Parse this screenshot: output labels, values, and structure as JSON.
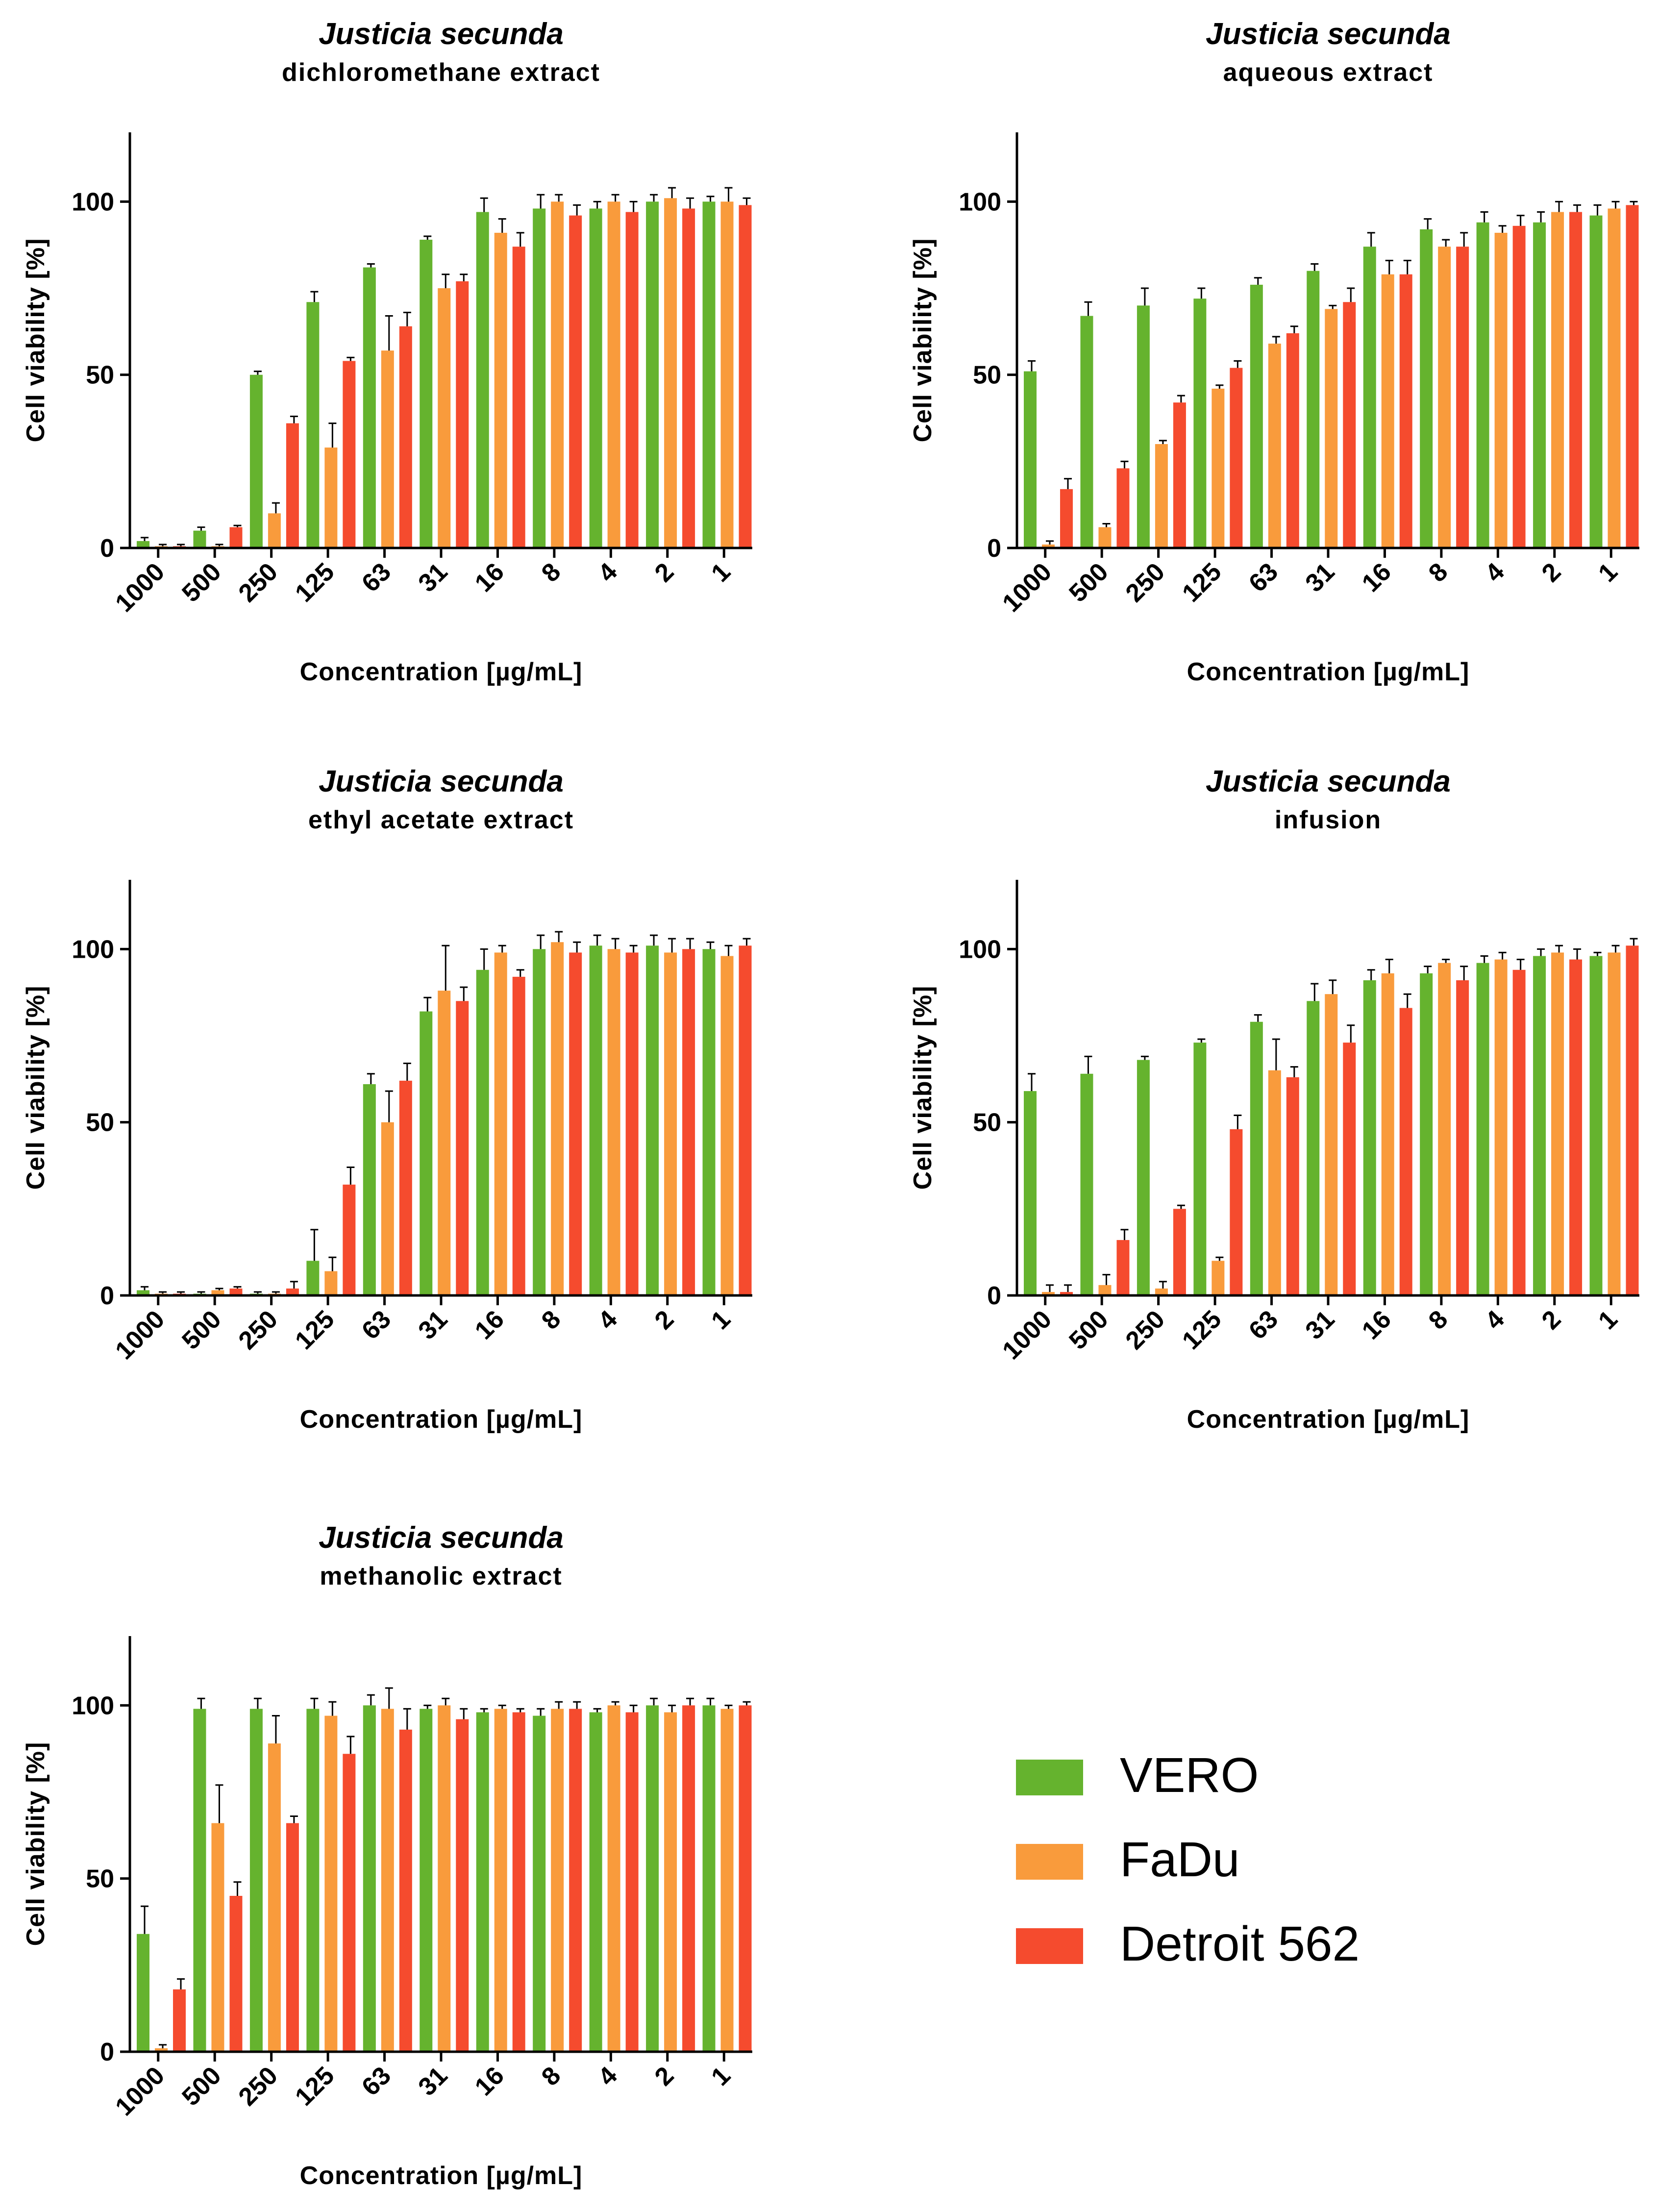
{
  "chart_data": [
    {
      "type": "bar",
      "title": "Justicia secunda",
      "subtitle": "dichloromethane extract",
      "xlabel": "Concentration [µg/mL]",
      "ylabel": "Cell viability [%]",
      "ylim": [
        0,
        120
      ],
      "yticks": [
        0,
        50,
        100
      ],
      "categories": [
        "1000",
        "500",
        "250",
        "125",
        "63",
        "31",
        "16",
        "8",
        "4",
        "2",
        "1"
      ],
      "series": [
        {
          "name": "VERO",
          "values": [
            2,
            5,
            50,
            71,
            81,
            89,
            97,
            98,
            98,
            100,
            100
          ],
          "errors": [
            1,
            1,
            1,
            3,
            1,
            1,
            4,
            4,
            2,
            2,
            1.5
          ]
        },
        {
          "name": "FaDu",
          "values": [
            0.5,
            0.5,
            10,
            29,
            57,
            75,
            91,
            100,
            100,
            101,
            100
          ],
          "errors": [
            0.5,
            0.5,
            3,
            7,
            10,
            4,
            4,
            2,
            2,
            3,
            4
          ]
        },
        {
          "name": "Detroit 562",
          "values": [
            0.5,
            6,
            36,
            54,
            64,
            77,
            87,
            96,
            97,
            98,
            99
          ],
          "errors": [
            0.5,
            0.5,
            2,
            1,
            4,
            2,
            4,
            3,
            3,
            3,
            2
          ]
        }
      ]
    },
    {
      "type": "bar",
      "title": "Justicia secunda",
      "subtitle": "aqueous extract",
      "xlabel": "Concentration [µg/mL]",
      "ylabel": "Cell viability [%]",
      "ylim": [
        0,
        120
      ],
      "yticks": [
        0,
        50,
        100
      ],
      "categories": [
        "1000",
        "500",
        "250",
        "125",
        "63",
        "31",
        "16",
        "8",
        "4",
        "2",
        "1"
      ],
      "series": [
        {
          "name": "VERO",
          "values": [
            51,
            67,
            70,
            72,
            76,
            80,
            87,
            92,
            94,
            94,
            96
          ],
          "errors": [
            3,
            4,
            5,
            3,
            2,
            2,
            4,
            3,
            3,
            3,
            3
          ]
        },
        {
          "name": "FaDu",
          "values": [
            1,
            6,
            30,
            46,
            59,
            69,
            79,
            87,
            91,
            97,
            98
          ],
          "errors": [
            1,
            1,
            1,
            1,
            2,
            1,
            4,
            2,
            2,
            3,
            2
          ]
        },
        {
          "name": "Detroit 562",
          "values": [
            17,
            23,
            42,
            52,
            62,
            71,
            79,
            87,
            93,
            97,
            99
          ],
          "errors": [
            3,
            2,
            2,
            2,
            2,
            4,
            4,
            4,
            3,
            2,
            1
          ]
        }
      ]
    },
    {
      "type": "bar",
      "title": "Justicia secunda",
      "subtitle": "ethyl acetate extract",
      "xlabel": "Concentration [µg/mL]",
      "ylabel": "Cell viability [%]",
      "ylim": [
        0,
        120
      ],
      "yticks": [
        0,
        50,
        100
      ],
      "categories": [
        "1000",
        "500",
        "250",
        "125",
        "63",
        "31",
        "16",
        "8",
        "4",
        "2",
        "1"
      ],
      "series": [
        {
          "name": "VERO",
          "values": [
            1.5,
            0.5,
            0.5,
            10,
            61,
            82,
            94,
            100,
            101,
            101,
            100
          ],
          "errors": [
            1,
            0.5,
            0.5,
            9,
            3,
            4,
            6,
            4,
            3,
            3,
            2
          ]
        },
        {
          "name": "FaDu",
          "values": [
            0.5,
            1.5,
            0.5,
            7,
            50,
            88,
            99,
            102,
            100,
            99,
            98
          ],
          "errors": [
            0.5,
            0.5,
            0.5,
            4,
            9,
            13,
            2,
            3,
            3,
            4,
            3
          ]
        },
        {
          "name": "Detroit 562",
          "values": [
            0.5,
            2,
            2,
            32,
            62,
            85,
            92,
            99,
            99,
            100,
            101
          ],
          "errors": [
            0.5,
            0.5,
            2,
            5,
            5,
            4,
            2,
            3,
            2,
            3,
            2
          ]
        }
      ]
    },
    {
      "type": "bar",
      "title": "Justicia secunda",
      "subtitle": "infusion",
      "xlabel": "Concentration [µg/mL]",
      "ylabel": "Cell viability [%]",
      "ylim": [
        0,
        120
      ],
      "yticks": [
        0,
        50,
        100
      ],
      "categories": [
        "1000",
        "500",
        "250",
        "125",
        "63",
        "31",
        "16",
        "8",
        "4",
        "2",
        "1"
      ],
      "series": [
        {
          "name": "VERO",
          "values": [
            59,
            64,
            68,
            73,
            79,
            85,
            91,
            93,
            96,
            98,
            98
          ],
          "errors": [
            5,
            5,
            1,
            1,
            2,
            5,
            3,
            2,
            2,
            2,
            1
          ]
        },
        {
          "name": "FaDu",
          "values": [
            1,
            3,
            2,
            10,
            65,
            87,
            93,
            96,
            97,
            99,
            99
          ],
          "errors": [
            2,
            3,
            2,
            1,
            9,
            4,
            4,
            1,
            2,
            2,
            2
          ]
        },
        {
          "name": "Detroit 562",
          "values": [
            1,
            16,
            25,
            48,
            63,
            73,
            83,
            91,
            94,
            97,
            101
          ],
          "errors": [
            2,
            3,
            1,
            4,
            3,
            5,
            4,
            4,
            3,
            3,
            2
          ]
        }
      ]
    },
    {
      "type": "bar",
      "title": "Justicia secunda",
      "subtitle": "methanolic extract",
      "xlabel": "Concentration [µg/mL]",
      "ylabel": "Cell viability [%]",
      "ylim": [
        0,
        120
      ],
      "yticks": [
        0,
        50,
        100
      ],
      "categories": [
        "1000",
        "500",
        "250",
        "125",
        "63",
        "31",
        "16",
        "8",
        "4",
        "2",
        "1"
      ],
      "series": [
        {
          "name": "VERO",
          "values": [
            34,
            99,
            99,
            99,
            100,
            99,
            98,
            97,
            98,
            100,
            100
          ],
          "errors": [
            8,
            3,
            3,
            3,
            3,
            1,
            1,
            2,
            1,
            2,
            2
          ]
        },
        {
          "name": "FaDu",
          "values": [
            1,
            66,
            89,
            97,
            99,
            100,
            99,
            99,
            100,
            98,
            99
          ],
          "errors": [
            1,
            11,
            8,
            4,
            6,
            2,
            1,
            2,
            1,
            2,
            1
          ]
        },
        {
          "name": "Detroit 562",
          "values": [
            18,
            45,
            66,
            86,
            93,
            96,
            98,
            99,
            98,
            100,
            100
          ],
          "errors": [
            3,
            4,
            2,
            5,
            6,
            3,
            1,
            2,
            2,
            2,
            1
          ]
        }
      ]
    }
  ],
  "legend": {
    "items": [
      {
        "name": "VERO",
        "color": "#65b32e"
      },
      {
        "name": "FaDu",
        "color": "#f99b3c"
      },
      {
        "name": "Detroit 562",
        "color": "#f54b2e"
      }
    ]
  },
  "colors": {
    "VERO": "#65b32e",
    "FaDu": "#f99b3c",
    "Detroit 562": "#f54b2e",
    "axis": "#000000"
  }
}
